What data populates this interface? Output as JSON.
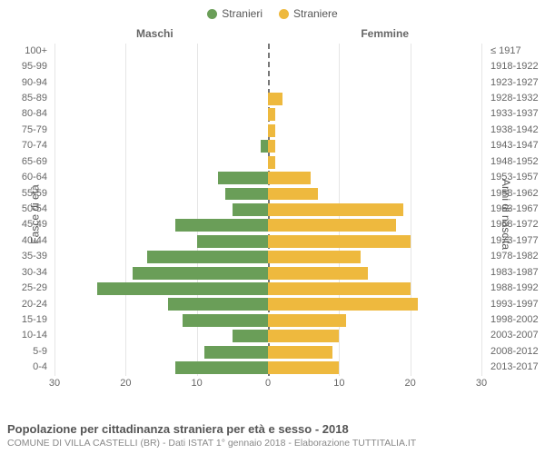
{
  "legend": {
    "male": {
      "label": "Stranieri",
      "color": "#6a9e58"
    },
    "female": {
      "label": "Straniere",
      "color": "#eeb93e"
    }
  },
  "headers": {
    "left": "Maschi",
    "right": "Femmine"
  },
  "axis_titles": {
    "left": "Fasce di età",
    "right": "Anni di nascita"
  },
  "xaxis": {
    "max": 30,
    "ticks": [
      30,
      20,
      10,
      0,
      10,
      20,
      30
    ]
  },
  "colors": {
    "grid": "#e5e5e5",
    "center": "#777",
    "text": "#666",
    "bg": "#ffffff"
  },
  "bar_height_pct": 80,
  "rows": [
    {
      "age": "100+",
      "birth": "≤ 1917",
      "male": 0,
      "female": 0
    },
    {
      "age": "95-99",
      "birth": "1918-1922",
      "male": 0,
      "female": 0
    },
    {
      "age": "90-94",
      "birth": "1923-1927",
      "male": 0,
      "female": 0
    },
    {
      "age": "85-89",
      "birth": "1928-1932",
      "male": 0,
      "female": 2
    },
    {
      "age": "80-84",
      "birth": "1933-1937",
      "male": 0,
      "female": 1
    },
    {
      "age": "75-79",
      "birth": "1938-1942",
      "male": 0,
      "female": 1
    },
    {
      "age": "70-74",
      "birth": "1943-1947",
      "male": 1,
      "female": 1
    },
    {
      "age": "65-69",
      "birth": "1948-1952",
      "male": 0,
      "female": 1
    },
    {
      "age": "60-64",
      "birth": "1953-1957",
      "male": 7,
      "female": 6
    },
    {
      "age": "55-59",
      "birth": "1958-1962",
      "male": 6,
      "female": 7
    },
    {
      "age": "50-54",
      "birth": "1963-1967",
      "male": 5,
      "female": 19
    },
    {
      "age": "45-49",
      "birth": "1968-1972",
      "male": 13,
      "female": 18
    },
    {
      "age": "40-44",
      "birth": "1973-1977",
      "male": 10,
      "female": 20
    },
    {
      "age": "35-39",
      "birth": "1978-1982",
      "male": 17,
      "female": 13
    },
    {
      "age": "30-34",
      "birth": "1983-1987",
      "male": 19,
      "female": 14
    },
    {
      "age": "25-29",
      "birth": "1988-1992",
      "male": 24,
      "female": 20
    },
    {
      "age": "20-24",
      "birth": "1993-1997",
      "male": 14,
      "female": 21
    },
    {
      "age": "15-19",
      "birth": "1998-2002",
      "male": 12,
      "female": 11
    },
    {
      "age": "10-14",
      "birth": "2003-2007",
      "male": 5,
      "female": 10
    },
    {
      "age": "5-9",
      "birth": "2008-2012",
      "male": 9,
      "female": 9
    },
    {
      "age": "0-4",
      "birth": "2013-2017",
      "male": 13,
      "female": 10
    }
  ],
  "footer": {
    "title": "Popolazione per cittadinanza straniera per età e sesso - 2018",
    "sub": "COMUNE DI VILLA CASTELLI (BR) - Dati ISTAT 1° gennaio 2018 - Elaborazione TUTTITALIA.IT"
  }
}
